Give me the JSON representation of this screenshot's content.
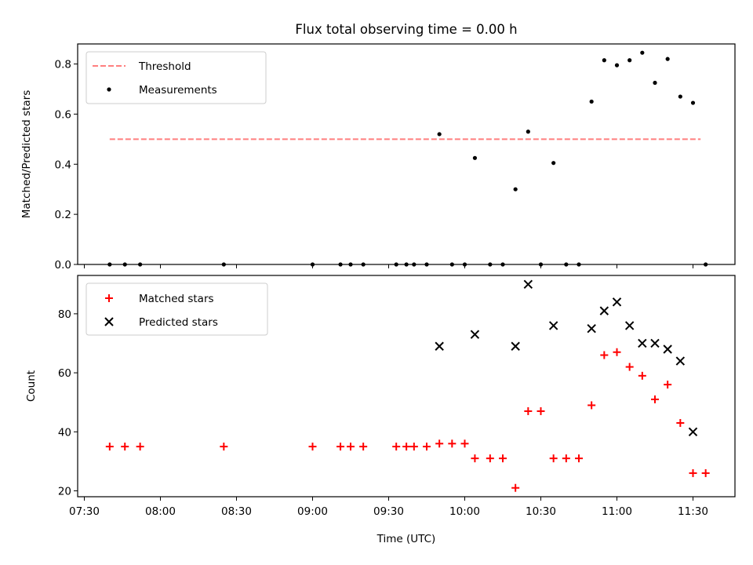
{
  "chart_data": [
    {
      "type": "scatter",
      "title": "Flux total observing time = 0.00 h",
      "xlabel": "",
      "ylabel": "Matched/Predicted stars",
      "ylim": [
        0,
        0.88
      ],
      "yticks": [
        "0.0",
        "0.2",
        "0.4",
        "0.6",
        "0.8"
      ],
      "legend_position": "top-left",
      "legend": [
        "Threshold",
        "Measurements"
      ],
      "threshold": {
        "value": 0.5,
        "x_start": "07:40",
        "x_end": "11:33",
        "color": "#ff7f7f"
      },
      "series": [
        {
          "name": "Measurements",
          "color": "#000000",
          "points": [
            [
              "07:40",
              0
            ],
            [
              "07:46",
              0
            ],
            [
              "07:52",
              0
            ],
            [
              "08:25",
              0
            ],
            [
              "09:00",
              0
            ],
            [
              "09:11",
              0
            ],
            [
              "09:15",
              0
            ],
            [
              "09:20",
              0
            ],
            [
              "09:33",
              0
            ],
            [
              "09:37",
              0
            ],
            [
              "09:40",
              0
            ],
            [
              "09:45",
              0
            ],
            [
              "09:50",
              0.52
            ],
            [
              "09:55",
              0
            ],
            [
              "10:00",
              0
            ],
            [
              "10:04",
              0.425
            ],
            [
              "10:10",
              0
            ],
            [
              "10:15",
              0
            ],
            [
              "10:20",
              0.3
            ],
            [
              "10:25",
              0.53
            ],
            [
              "10:30",
              0
            ],
            [
              "10:35",
              0.405
            ],
            [
              "10:40",
              0
            ],
            [
              "10:45",
              0
            ],
            [
              "10:50",
              0.65
            ],
            [
              "10:55",
              0.815
            ],
            [
              "11:00",
              0.795
            ],
            [
              "11:05",
              0.815
            ],
            [
              "11:10",
              0.845
            ],
            [
              "11:15",
              0.725
            ],
            [
              "11:20",
              0.82
            ],
            [
              "11:25",
              0.67
            ],
            [
              "11:30",
              0.645
            ],
            [
              "11:35",
              0
            ]
          ]
        }
      ]
    },
    {
      "type": "scatter",
      "title": "",
      "xlabel": "Time (UTC)",
      "ylabel": "Count",
      "ylim": [
        18,
        93
      ],
      "yticks": [
        "20",
        "40",
        "60",
        "80"
      ],
      "xticks": [
        "07:30",
        "08:00",
        "08:30",
        "09:00",
        "09:30",
        "10:00",
        "10:30",
        "11:00",
        "11:30"
      ],
      "legend_position": "top-left",
      "legend": [
        "Matched stars",
        "Predicted stars"
      ],
      "series": [
        {
          "name": "Matched stars",
          "color": "#ff0000",
          "marker": "plus",
          "points": [
            [
              "07:40",
              35
            ],
            [
              "07:46",
              35
            ],
            [
              "07:52",
              35
            ],
            [
              "08:25",
              35
            ],
            [
              "09:00",
              35
            ],
            [
              "09:11",
              35
            ],
            [
              "09:15",
              35
            ],
            [
              "09:20",
              35
            ],
            [
              "09:33",
              35
            ],
            [
              "09:37",
              35
            ],
            [
              "09:40",
              35
            ],
            [
              "09:45",
              35
            ],
            [
              "09:50",
              36
            ],
            [
              "09:55",
              36
            ],
            [
              "10:00",
              36
            ],
            [
              "10:04",
              31
            ],
            [
              "10:10",
              31
            ],
            [
              "10:15",
              31
            ],
            [
              "10:20",
              21
            ],
            [
              "10:25",
              47
            ],
            [
              "10:30",
              47
            ],
            [
              "10:35",
              31
            ],
            [
              "10:40",
              31
            ],
            [
              "10:45",
              31
            ],
            [
              "10:50",
              49
            ],
            [
              "10:55",
              66
            ],
            [
              "11:00",
              67
            ],
            [
              "11:05",
              62
            ],
            [
              "11:10",
              59
            ],
            [
              "11:15",
              51
            ],
            [
              "11:20",
              56
            ],
            [
              "11:25",
              43
            ],
            [
              "11:30",
              26
            ],
            [
              "11:35",
              26
            ]
          ]
        },
        {
          "name": "Predicted stars",
          "color": "#000000",
          "marker": "x",
          "points": [
            [
              "09:50",
              69
            ],
            [
              "10:04",
              73
            ],
            [
              "10:20",
              69
            ],
            [
              "10:25",
              90
            ],
            [
              "10:35",
              76
            ],
            [
              "10:50",
              75
            ],
            [
              "10:55",
              81
            ],
            [
              "11:00",
              84
            ],
            [
              "11:05",
              76
            ],
            [
              "11:10",
              70
            ],
            [
              "11:15",
              70
            ],
            [
              "11:20",
              68
            ],
            [
              "11:25",
              64
            ],
            [
              "11:30",
              40
            ]
          ]
        }
      ]
    }
  ]
}
